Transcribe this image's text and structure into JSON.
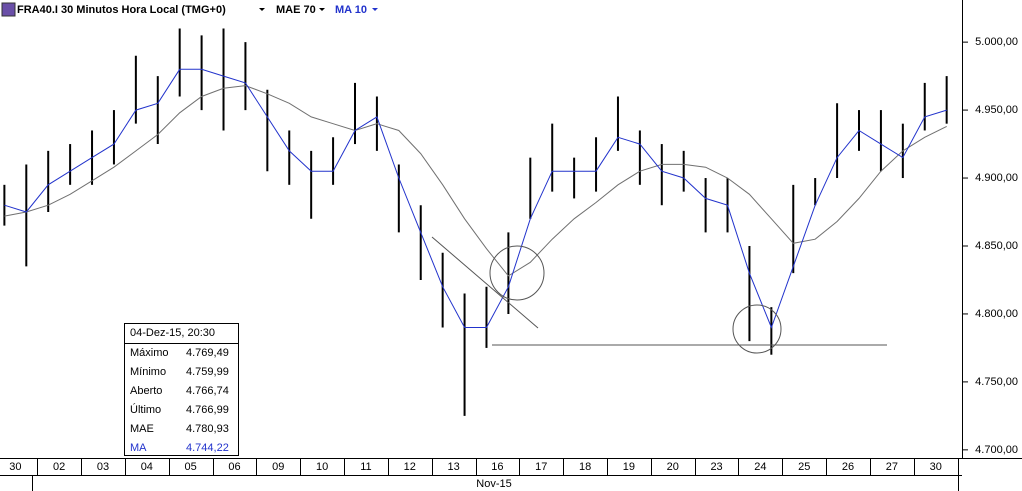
{
  "header": {
    "title": "FRA40.I 30 Minutos Hora Local (TMG+0)"
  },
  "chart_data": {
    "type": "ohlc",
    "x": [
      -0.25,
      0.25,
      0.75,
      1.25,
      1.75,
      2.25,
      2.75,
      3.25,
      3.75,
      4.25,
      4.75,
      5.25,
      5.75,
      6.25,
      6.75,
      7.25,
      7.75,
      8.25,
      8.75,
      9.25,
      9.75,
      10.25,
      10.75,
      11.25,
      11.75,
      12.25,
      12.75,
      13.25,
      13.75,
      14.25,
      14.75,
      15.25,
      15.75,
      16.25,
      16.75,
      17.25,
      17.75,
      18.25,
      18.75,
      19.25,
      19.75,
      20.25,
      20.75,
      21.25
    ],
    "xlim": [
      -0.35,
      21.6
    ],
    "xticks": [
      {
        "value": 0,
        "label": "30"
      },
      {
        "value": 1,
        "label": "02"
      },
      {
        "value": 2,
        "label": "03"
      },
      {
        "value": 3,
        "label": "04"
      },
      {
        "value": 4,
        "label": "05"
      },
      {
        "value": 5,
        "label": "06"
      },
      {
        "value": 6,
        "label": "09"
      },
      {
        "value": 7,
        "label": "10"
      },
      {
        "value": 8,
        "label": "11"
      },
      {
        "value": 9,
        "label": "12"
      },
      {
        "value": 10,
        "label": "13"
      },
      {
        "value": 11,
        "label": "16"
      },
      {
        "value": 12,
        "label": "17"
      },
      {
        "value": 13,
        "label": "18"
      },
      {
        "value": 14,
        "label": "19"
      },
      {
        "value": 15,
        "label": "20"
      },
      {
        "value": 16,
        "label": "23"
      },
      {
        "value": 17,
        "label": "24"
      },
      {
        "value": 18,
        "label": "25"
      },
      {
        "value": 19,
        "label": "26"
      },
      {
        "value": 20,
        "label": "27"
      },
      {
        "value": 21,
        "label": "30"
      }
    ],
    "month_label": "Nov-15",
    "ylim": [
      4694,
      5031
    ],
    "yticks": [
      {
        "value": 4700,
        "label": "4.700,00"
      },
      {
        "value": 4750,
        "label": "4.750,00"
      },
      {
        "value": 4800,
        "label": "4.800,00"
      },
      {
        "value": 4850,
        "label": "4.850,00"
      },
      {
        "value": 4900,
        "label": "4.900,00"
      },
      {
        "value": 4950,
        "label": "4.950,00"
      },
      {
        "value": 5000,
        "label": "5.000,00"
      }
    ],
    "bars": {
      "color": "#000000",
      "high": [
        4895,
        4910,
        4920,
        4925,
        4935,
        4950,
        4990,
        4975,
        5010,
        5005,
        5010,
        5000,
        4965,
        4935,
        4920,
        4930,
        4970,
        4960,
        4910,
        4880,
        4845,
        4815,
        4820,
        4860,
        4915,
        4940,
        4915,
        4930,
        4960,
        4935,
        4925,
        4920,
        4900,
        4900,
        4850,
        4805,
        4895,
        4900,
        4955,
        4950,
        4950,
        4940,
        4970,
        4975
      ],
      "low": [
        4865,
        4835,
        4875,
        4895,
        4895,
        4910,
        4940,
        4925,
        4960,
        4950,
        4935,
        4950,
        4905,
        4895,
        4870,
        4895,
        4925,
        4920,
        4860,
        4825,
        4790,
        4725,
        4775,
        4800,
        4870,
        4890,
        4885,
        4890,
        4920,
        4895,
        4880,
        4890,
        4860,
        4860,
        4780,
        4770,
        4830,
        4880,
        4900,
        4920,
        4905,
        4900,
        4935,
        4940
      ]
    },
    "series": [
      {
        "name": "MAE 70",
        "color": "#707070",
        "values": [
          4872,
          4875,
          4880,
          4888,
          4898,
          4908,
          4920,
          4932,
          4948,
          4960,
          4966,
          4968,
          4962,
          4955,
          4945,
          4940,
          4935,
          4940,
          4935,
          4918,
          4895,
          4870,
          4848,
          4828,
          4838,
          4855,
          4870,
          4882,
          4895,
          4905,
          4910,
          4910,
          4908,
          4900,
          4888,
          4870,
          4852,
          4855,
          4868,
          4885,
          4905,
          4920,
          4930,
          4938
        ]
      },
      {
        "name": "MA 10",
        "color": "#2233cc",
        "values": [
          4880,
          4875,
          4895,
          4905,
          4915,
          4925,
          4950,
          4955,
          4980,
          4980,
          4975,
          4970,
          4945,
          4920,
          4905,
          4905,
          4935,
          4945,
          4900,
          4860,
          4820,
          4790,
          4790,
          4820,
          4870,
          4905,
          4905,
          4905,
          4930,
          4925,
          4905,
          4900,
          4885,
          4880,
          4830,
          4790,
          4835,
          4880,
          4915,
          4935,
          4925,
          4915,
          4945,
          4950
        ]
      }
    ]
  },
  "info_box": {
    "title": "04-Dez-15, 20:30",
    "rows": [
      [
        "Máximo",
        "4.769,49"
      ],
      [
        "Mínimo",
        "4.759,99"
      ],
      [
        "Aberto",
        "4.766,74"
      ],
      [
        "Último",
        "4.766,99"
      ],
      [
        "MAE",
        "4.780,93"
      ],
      [
        "MA",
        "4.744,22"
      ]
    ]
  }
}
